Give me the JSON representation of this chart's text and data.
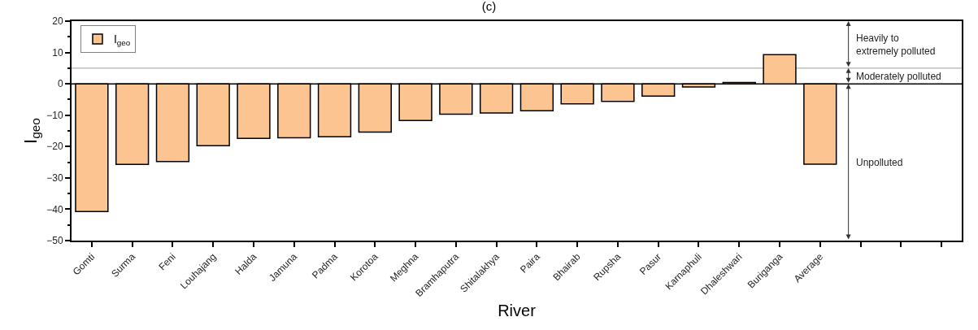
{
  "chart_data": {
    "type": "bar",
    "title": "(c)",
    "xlabel": "River",
    "ylabel": "I$_{geo}$",
    "categories": [
      "Gomti",
      "Surma",
      "Feni",
      "Louhajang",
      "Halda",
      "Jamuna",
      "Padma",
      "Korotoa",
      "Meghna",
      "Bramhaputra",
      "Shitalakhya",
      "Paira",
      "Bhairab",
      "Rupsha",
      "Pasur",
      "Karnaphuli",
      "Dhaleshwari",
      "Buriganga",
      "Average",
      null,
      null,
      null
    ],
    "series": [
      {
        "name": "I$_{geo}$",
        "color": "#fbc491",
        "values": [
          -40.7,
          -25.7,
          -24.8,
          -19.7,
          -17.4,
          -17.2,
          -16.9,
          -15.4,
          -11.7,
          -9.7,
          -9.3,
          -8.6,
          -6.4,
          -5.6,
          -3.9,
          -1.0,
          0.4,
          9.3,
          -25.6,
          null,
          null,
          null
        ]
      }
    ],
    "ylim": [
      -50,
      20
    ],
    "yticks": [
      -50,
      -40,
      -30,
      -20,
      -10,
      0,
      10,
      20
    ],
    "ref_lines": [
      {
        "axis": "y",
        "value": 0,
        "color": "#000000"
      },
      {
        "axis": "y",
        "value": 5,
        "color": "#a0a0a0"
      }
    ],
    "annotations": [
      "Heavily to extremely polluted",
      "Moderately polluted",
      "Unpolluted"
    ],
    "legend": "top left"
  }
}
